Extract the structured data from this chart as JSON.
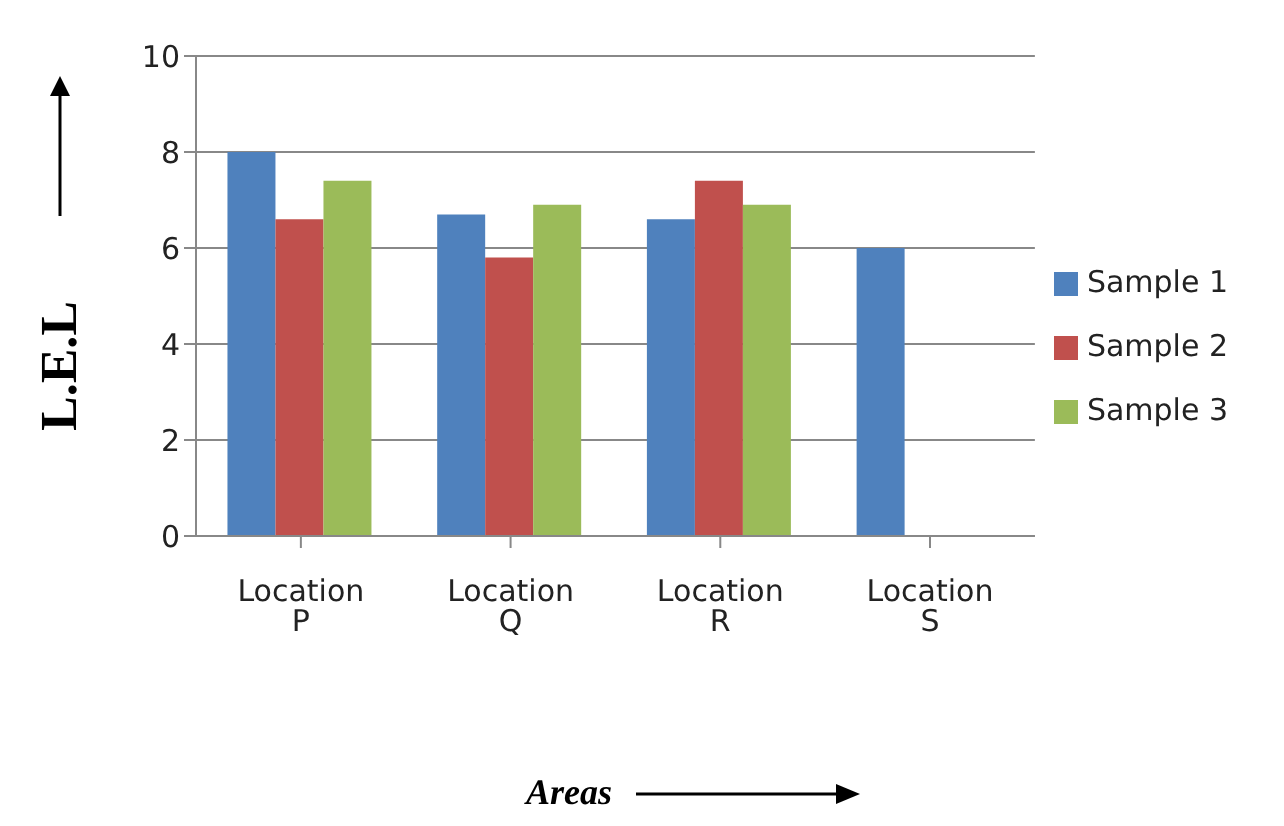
{
  "chart_data": {
    "type": "bar",
    "xlabel": "Areas",
    "ylabel": "L.E.L",
    "categories": [
      "Location P",
      "Location Q",
      "Location R",
      "Location S"
    ],
    "series": [
      {
        "name": "Sample 1",
        "color": "#4f81bd",
        "values": [
          8.0,
          6.7,
          6.6,
          6.0
        ]
      },
      {
        "name": "Sample 2",
        "color": "#c0504d",
        "values": [
          6.6,
          5.8,
          7.4,
          null
        ]
      },
      {
        "name": "Sample 3",
        "color": "#9bbb59",
        "values": [
          7.4,
          6.9,
          6.9,
          null
        ]
      }
    ],
    "ylim": [
      0,
      10
    ],
    "yticks": [
      0,
      2,
      4,
      6,
      8,
      10
    ],
    "grid": "y",
    "legend": "right"
  }
}
